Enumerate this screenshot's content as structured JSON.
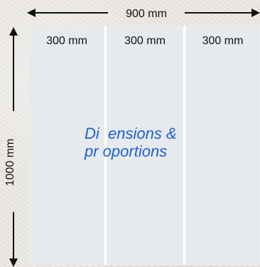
{
  "dimensions": {
    "width_label": "900 mm",
    "height_label": "1000 mm"
  },
  "panels": [
    {
      "label": "300 mm"
    },
    {
      "label": "300 mm"
    },
    {
      "label": "300 mm"
    }
  ],
  "caption": {
    "line1": "Di  ensions &",
    "line2": "pr oportions"
  },
  "colors": {
    "panel": "#e7eaec",
    "seam": "#ffffff",
    "caption": "#1f5fd6",
    "arrow": "#111111"
  }
}
